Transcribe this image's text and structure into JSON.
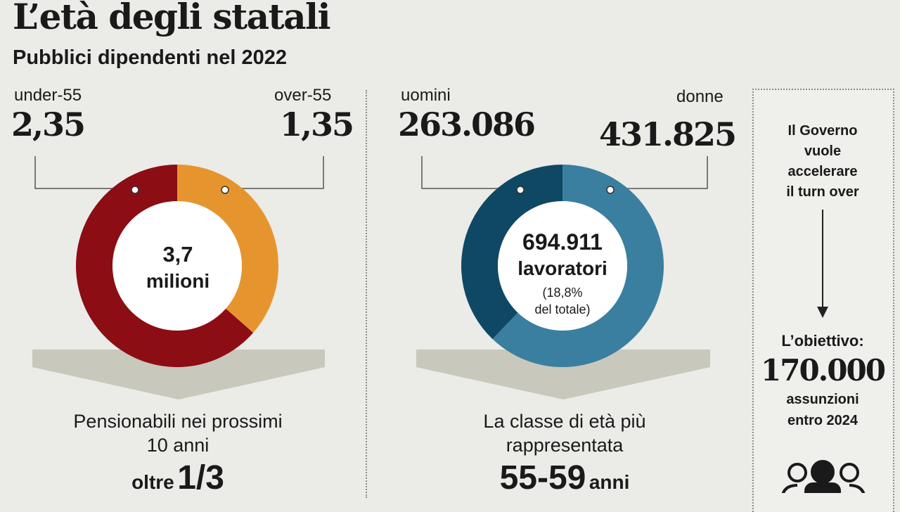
{
  "header": {
    "title": "L’età degli statali",
    "subtitle": "Pubblici dipendenti nel 2022"
  },
  "chart_data": [
    {
      "type": "pie",
      "labels": [
        "under-55",
        "over-55"
      ],
      "values": [
        2.35,
        1.35
      ],
      "value_labels": [
        "2,35",
        "1,35"
      ],
      "colors": [
        "#8c0d14",
        "#e6952e"
      ],
      "center_value": "3,7",
      "center_unit": "milioni",
      "caption": [
        "Pensionabili nei prossimi",
        "10 anni"
      ],
      "kpi_prefix": "oltre",
      "kpi_value": "1/3"
    },
    {
      "type": "pie",
      "labels": [
        "uomini",
        "donne"
      ],
      "values": [
        263086,
        431825
      ],
      "value_labels": [
        "263.086",
        "431.825"
      ],
      "colors": [
        "#0f4864",
        "#3a7f9f"
      ],
      "center_value": "694.911",
      "center_unit": "lavoratori",
      "center_note": [
        "(18,8%",
        "del totale)"
      ],
      "caption": [
        "La classe di età più",
        "rappresentata"
      ],
      "kpi_value": "55-59",
      "kpi_suffix": "anni"
    }
  ],
  "sidebar": {
    "lines": [
      "Il Governo",
      "vuole",
      "accelerare",
      "il turn over"
    ],
    "goal_label": "L’obiettivo:",
    "goal_value": "170.000",
    "goal_lines": [
      "assunzioni",
      "entro 2024"
    ],
    "icon": "people-group-icon"
  }
}
